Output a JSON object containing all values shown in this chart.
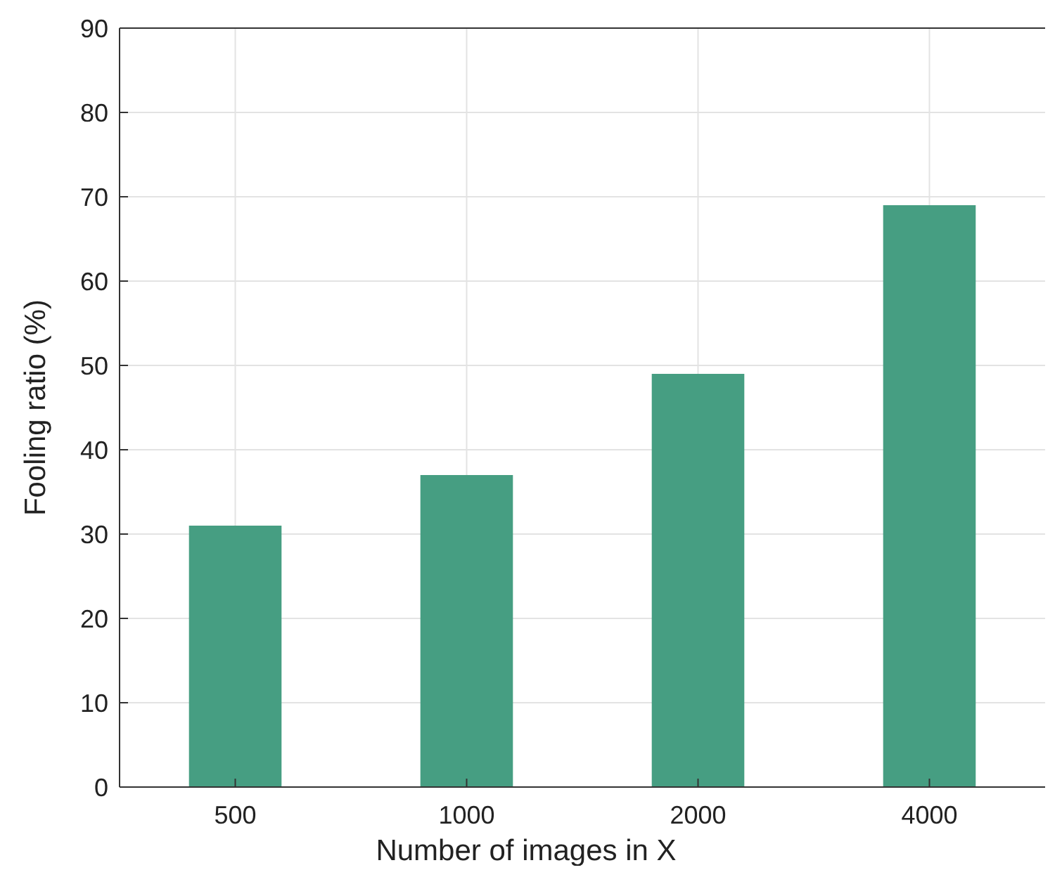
{
  "chart_data": {
    "type": "bar",
    "xlabel": "Number of images in X",
    "ylabel": "Fooling ratio (%)",
    "categories": [
      "500",
      "1000",
      "2000",
      "4000"
    ],
    "values": [
      31,
      37,
      49,
      69
    ],
    "color": "#469e82",
    "ylim": [
      0,
      90
    ],
    "yticks": [
      0,
      10,
      20,
      30,
      40,
      50,
      60,
      70,
      80,
      90
    ],
    "grid": true
  }
}
